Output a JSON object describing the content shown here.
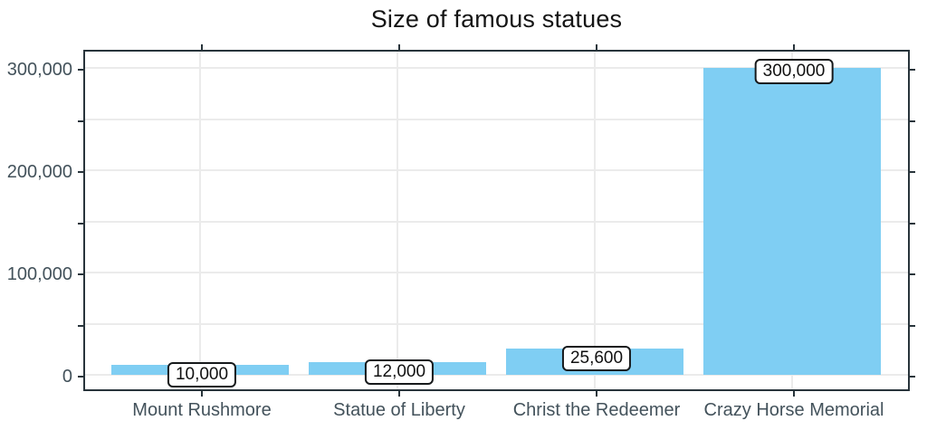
{
  "chart_data": {
    "type": "bar",
    "title": "Size of famous statues",
    "categories": [
      "Mount Rushmore",
      "Statue of Liberty",
      "Christ the Redeemer",
      "Crazy Horse Memorial"
    ],
    "values": [
      10000,
      12000,
      25600,
      300000
    ],
    "value_labels": [
      "10,000",
      "12,000",
      "25,600",
      "300,000"
    ],
    "xlabel": "",
    "ylabel": "",
    "ylim": [
      0,
      300000
    ],
    "y_major_ticks": [
      0,
      100000,
      200000,
      300000
    ],
    "y_tick_labels": [
      "0",
      "100,000",
      "200,000",
      "300,000"
    ],
    "y_minor_step": 50000,
    "grid": "on",
    "legend": "none",
    "colors": {
      "bar_fill": "#7FCEF3",
      "axis_line": "#28343b",
      "tick_label": "#43525b",
      "gridline": "#ebebeb",
      "title_text": "#151515",
      "value_label_text": "#111111",
      "value_label_border": "#16191b",
      "background": "#ffffff"
    }
  }
}
